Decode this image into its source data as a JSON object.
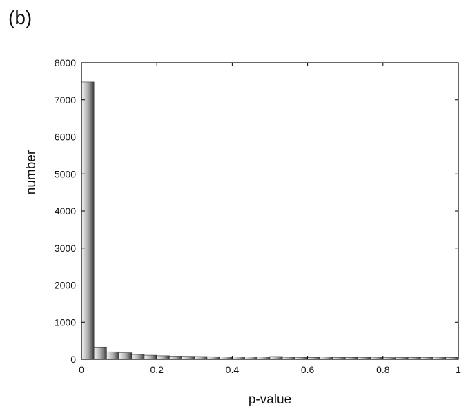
{
  "panel_label": "(b)",
  "chart_data": {
    "type": "bar",
    "xlabel": "p-value",
    "ylabel": "number",
    "xlim": [
      0,
      1
    ],
    "ylim": [
      0,
      8000
    ],
    "x_ticks": [
      "0",
      "0.2",
      "0.4",
      "0.6",
      "0.8",
      "1"
    ],
    "y_ticks": [
      "0",
      "1000",
      "2000",
      "3000",
      "4000",
      "5000",
      "6000",
      "7000",
      "8000"
    ],
    "bin_width": 0.03333,
    "bin_starts": [
      0,
      0.03333,
      0.06667,
      0.1,
      0.13333,
      0.16667,
      0.2,
      0.23333,
      0.26667,
      0.3,
      0.33333,
      0.36667,
      0.4,
      0.43333,
      0.46667,
      0.5,
      0.53333,
      0.56667,
      0.6,
      0.63333,
      0.66667,
      0.7,
      0.73333,
      0.76667,
      0.8,
      0.83333,
      0.86667,
      0.9,
      0.93333,
      0.96667
    ],
    "values": [
      7480,
      330,
      200,
      175,
      130,
      110,
      95,
      85,
      80,
      75,
      70,
      68,
      65,
      62,
      60,
      75,
      55,
      52,
      50,
      60,
      48,
      50,
      52,
      55,
      45,
      48,
      50,
      52,
      55,
      50
    ],
    "grid": false,
    "colors": {
      "bar_light": "#f2f2f2",
      "bar_mid": "#a8a8a8",
      "bar_dark": "#3a3a3a",
      "axis": "#000000"
    }
  }
}
